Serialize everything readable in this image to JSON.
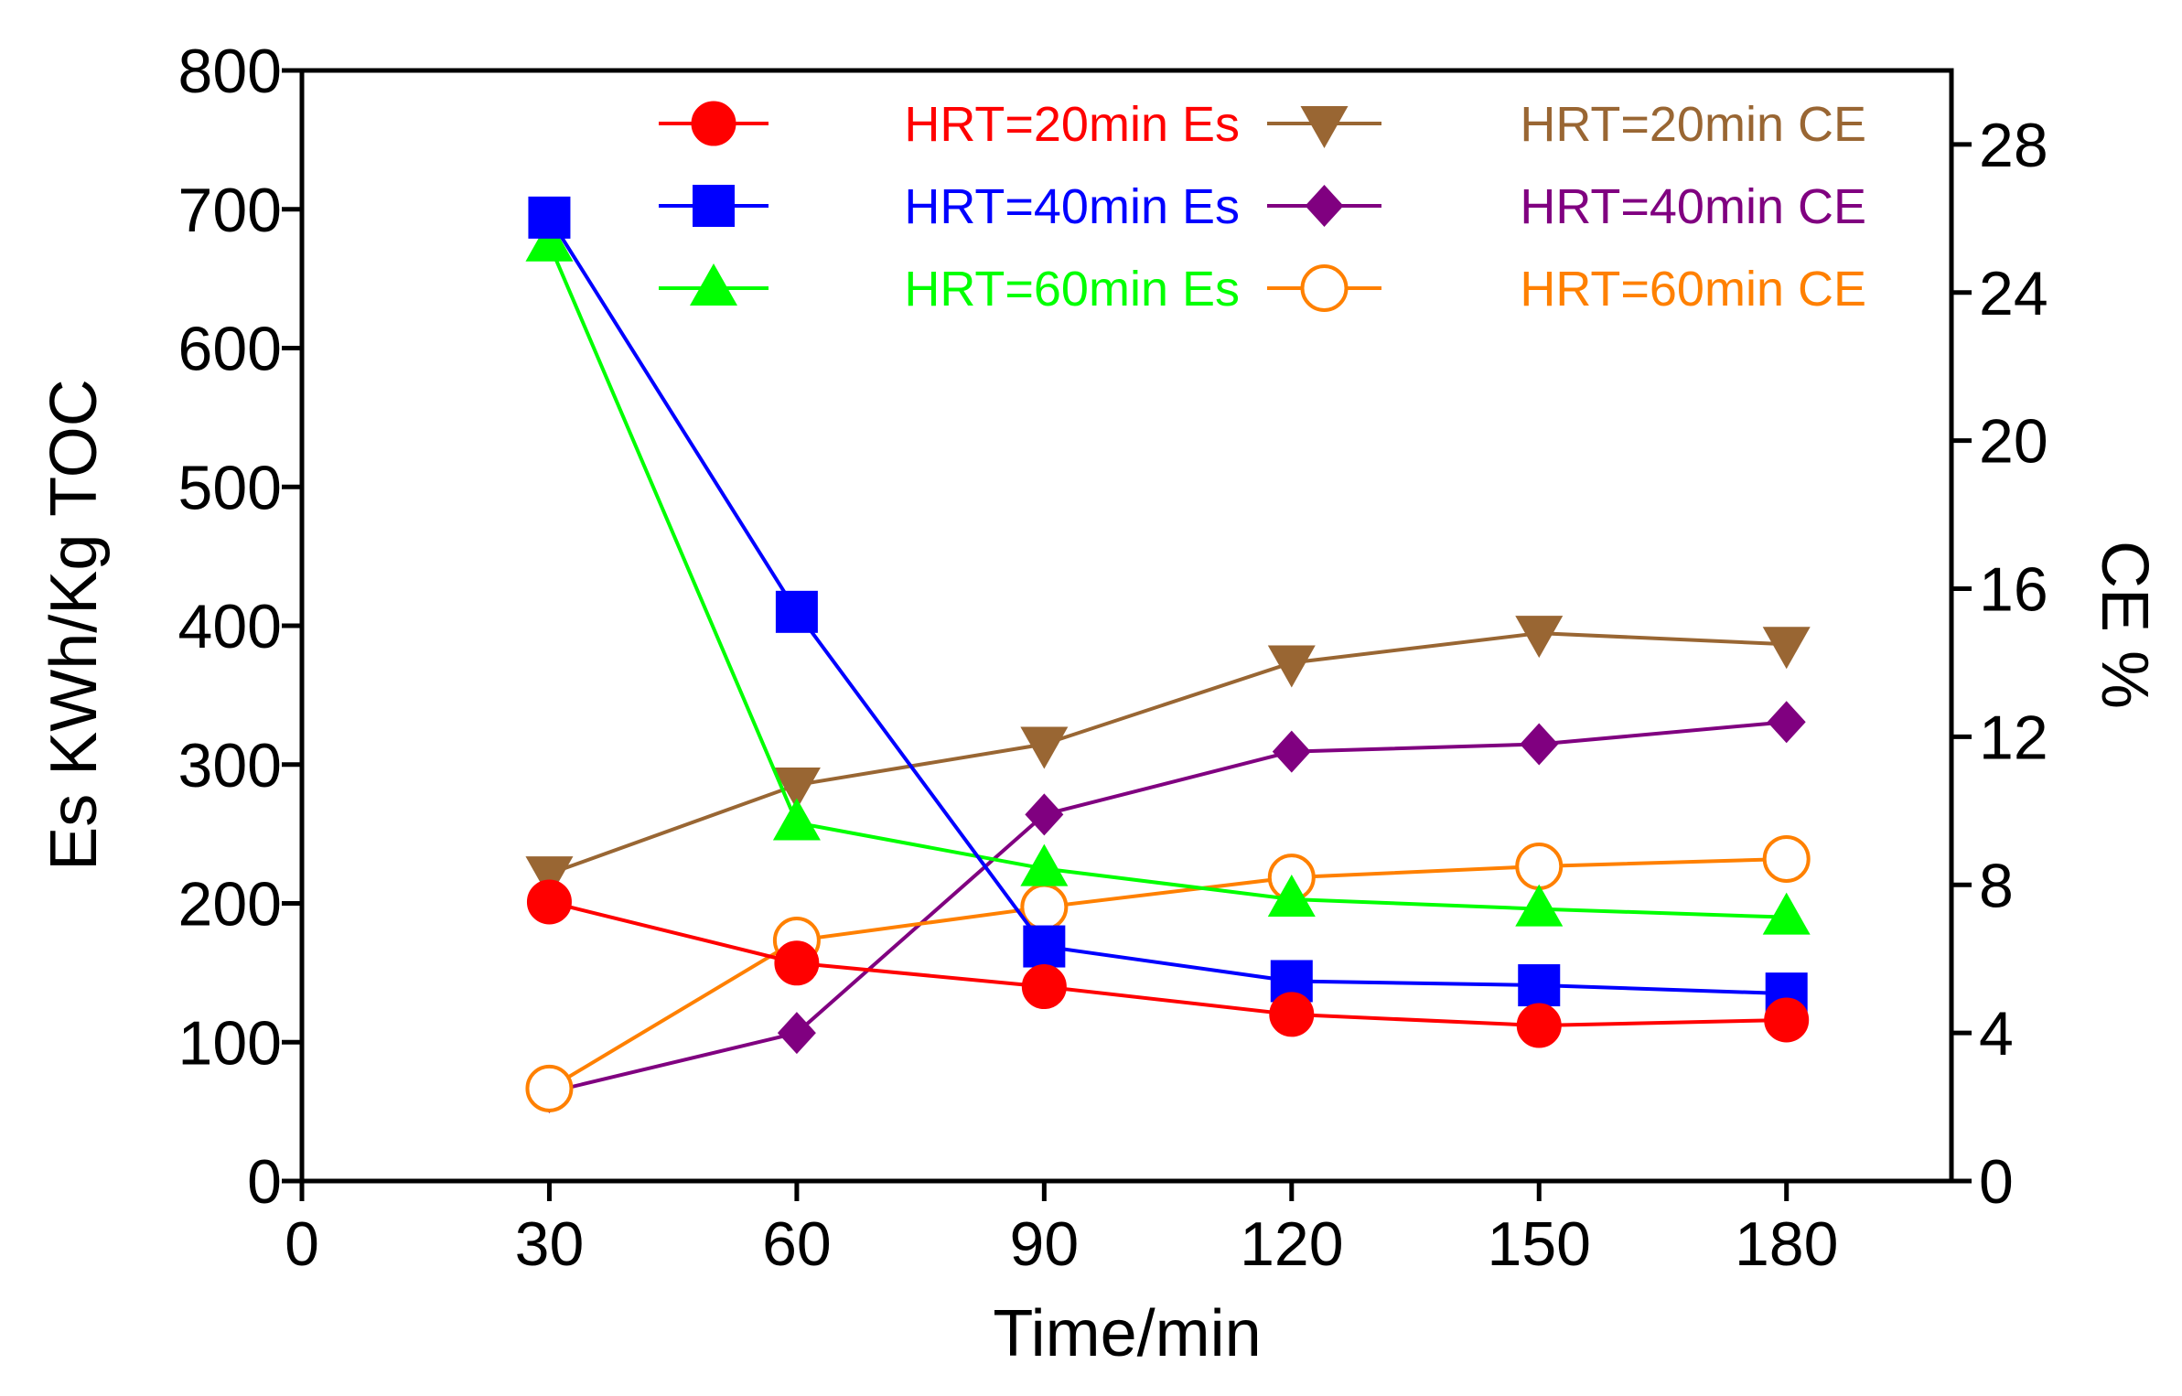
{
  "chart_data": {
    "type": "line",
    "title": "",
    "xlabel": "Time/min",
    "ylabel": "Es KWh/Kg TOC",
    "y2label": "CE %",
    "xlim": [
      0,
      200
    ],
    "ylim": [
      0,
      800
    ],
    "y2lim": [
      0,
      30
    ],
    "x_ticks": [
      "0",
      "30",
      "60",
      "90",
      "120",
      "150",
      "180"
    ],
    "y_ticks": [
      "0",
      "100",
      "200",
      "300",
      "400",
      "500",
      "600",
      "700",
      "800"
    ],
    "y2_ticks": [
      "0",
      "4",
      "8",
      "12",
      "16",
      "20",
      "24",
      "28"
    ],
    "x": [
      30,
      60,
      90,
      120,
      150,
      180
    ],
    "grid": false,
    "legend_position": "top",
    "series": [
      {
        "name": "HRT=20min Es",
        "axis": "left",
        "color": "#ff0000",
        "marker": "circle-filled",
        "values": [
          201,
          157,
          140,
          120,
          112,
          116
        ]
      },
      {
        "name": "HRT=40min Es",
        "axis": "left",
        "color": "#0000ff",
        "marker": "square-filled",
        "values": [
          694,
          410,
          169,
          144,
          141,
          135
        ]
      },
      {
        "name": "HRT=60min Es",
        "axis": "left",
        "color": "#00ff00",
        "marker": "triangle-up-filled",
        "values": [
          675,
          258,
          225,
          203,
          196,
          190
        ]
      },
      {
        "name": "HRT=20min CE",
        "axis": "right",
        "color": "#996633",
        "marker": "triangle-down-filled",
        "values": [
          8.3,
          10.7,
          11.8,
          14.0,
          14.8,
          14.5
        ]
      },
      {
        "name": "HRT=40min CE",
        "axis": "right",
        "color": "#800080",
        "marker": "diamond-filled",
        "values": [
          2.4,
          4.0,
          9.9,
          11.6,
          11.8,
          12.4
        ]
      },
      {
        "name": "HRT=60min CE",
        "axis": "right",
        "color": "#ff8000",
        "marker": "circle-open",
        "values": [
          2.5,
          6.5,
          7.4,
          8.2,
          8.5,
          8.7
        ]
      }
    ]
  }
}
